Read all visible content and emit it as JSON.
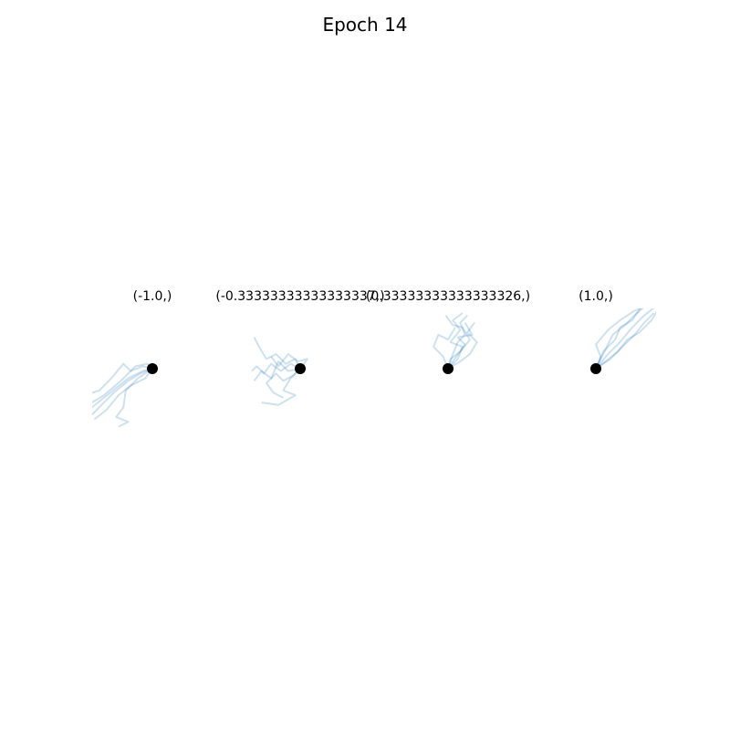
{
  "figure": {
    "title": "Epoch 14"
  },
  "style": {
    "trajectory_color": "#1f77b4",
    "trajectory_alpha": 0.22,
    "marker_color": "#000000"
  },
  "chart_data": [
    {
      "type": "line",
      "title": "(-1.0,)",
      "description_panel": 1,
      "start_point": [
        0,
        0
      ],
      "trajectories": [
        [
          [
            0,
            0
          ],
          [
            -0.25,
            -0.1
          ],
          [
            -0.5,
            -0.25
          ],
          [
            -0.8,
            -0.5
          ],
          [
            -1.05,
            -0.75
          ],
          [
            -1.25,
            -0.95
          ]
        ],
        [
          [
            0,
            0
          ],
          [
            -0.15,
            -0.2
          ],
          [
            -0.45,
            -0.35
          ],
          [
            -0.7,
            -0.55
          ],
          [
            -0.95,
            -0.85
          ],
          [
            -1.2,
            -1.05
          ]
        ],
        [
          [
            0,
            0
          ],
          [
            -0.2,
            0.05
          ],
          [
            -0.45,
            -0.05
          ],
          [
            -0.6,
            0.1
          ],
          [
            -0.85,
            -0.2
          ],
          [
            -1.1,
            -0.45
          ],
          [
            -1.25,
            -0.5
          ]
        ],
        [
          [
            0,
            0
          ],
          [
            -0.3,
            -0.2
          ],
          [
            -0.55,
            -0.45
          ],
          [
            -0.6,
            -0.8
          ],
          [
            -0.75,
            -1.0
          ],
          [
            -0.5,
            -1.1
          ],
          [
            -0.7,
            -1.2
          ]
        ],
        [
          [
            0,
            0
          ],
          [
            -0.1,
            0.1
          ],
          [
            -0.35,
            0.05
          ],
          [
            -0.65,
            -0.25
          ],
          [
            -1.0,
            -0.55
          ],
          [
            -1.25,
            -0.7
          ]
        ],
        [
          [
            0,
            0
          ],
          [
            -0.2,
            -0.05
          ],
          [
            -0.5,
            -0.2
          ],
          [
            -0.75,
            -0.4
          ],
          [
            -1.0,
            -0.6
          ],
          [
            -1.25,
            -0.8
          ]
        ]
      ]
    },
    {
      "type": "line",
      "title": "(-0.33333333333333337,)",
      "description_panel": 2,
      "start_point": [
        0,
        0
      ],
      "trajectories": [
        [
          [
            0,
            0
          ],
          [
            -0.2,
            0.1
          ],
          [
            -0.4,
            -0.05
          ],
          [
            -0.6,
            0.1
          ],
          [
            -0.75,
            -0.1
          ],
          [
            -0.9,
            0.05
          ],
          [
            -1.0,
            -0.05
          ]
        ],
        [
          [
            0,
            0
          ],
          [
            -0.15,
            -0.15
          ],
          [
            -0.35,
            -0.25
          ],
          [
            -0.5,
            -0.1
          ],
          [
            -0.7,
            -0.3
          ],
          [
            -0.55,
            -0.5
          ],
          [
            -0.35,
            -0.6
          ]
        ],
        [
          [
            0,
            0
          ],
          [
            -0.1,
            0.2
          ],
          [
            -0.3,
            0.1
          ],
          [
            -0.5,
            0.3
          ],
          [
            -0.7,
            0.2
          ],
          [
            -0.85,
            0.45
          ],
          [
            -0.95,
            0.65
          ]
        ],
        [
          [
            0,
            0
          ],
          [
            -0.25,
            -0.05
          ],
          [
            -0.45,
            0.15
          ],
          [
            -0.6,
            -0.2
          ],
          [
            -0.8,
            -0.05
          ],
          [
            -0.95,
            -0.25
          ]
        ],
        [
          [
            0,
            0
          ],
          [
            0.15,
            0.2
          ],
          [
            -0.05,
            0.15
          ],
          [
            -0.25,
            0.3
          ],
          [
            -0.45,
            0.05
          ],
          [
            -0.6,
            0.25
          ]
        ],
        [
          [
            0,
            0
          ],
          [
            -0.2,
            -0.2
          ],
          [
            -0.35,
            -0.45
          ],
          [
            -0.1,
            -0.55
          ],
          [
            -0.45,
            -0.75
          ],
          [
            -0.8,
            -0.7
          ]
        ]
      ]
    },
    {
      "type": "line",
      "title": "(0.33333333333333326,)",
      "description_panel": 3,
      "start_point": [
        0,
        0
      ],
      "trajectories": [
        [
          [
            0,
            0
          ],
          [
            0.1,
            0.3
          ],
          [
            0.2,
            0.55
          ],
          [
            0.35,
            0.7
          ],
          [
            0.25,
            0.95
          ],
          [
            0.4,
            1.1
          ]
        ],
        [
          [
            0,
            0
          ],
          [
            0.2,
            0.2
          ],
          [
            0.3,
            0.45
          ],
          [
            0.05,
            0.55
          ],
          [
            0.25,
            0.8
          ],
          [
            0.1,
            1.0
          ],
          [
            0.3,
            1.15
          ]
        ],
        [
          [
            0,
            0
          ],
          [
            -0.1,
            0.25
          ],
          [
            -0.3,
            0.45
          ],
          [
            -0.2,
            0.7
          ],
          [
            0.0,
            0.6
          ],
          [
            0.15,
            0.85
          ]
        ],
        [
          [
            0,
            0
          ],
          [
            0.25,
            0.15
          ],
          [
            0.45,
            0.3
          ],
          [
            0.6,
            0.55
          ],
          [
            0.4,
            0.75
          ],
          [
            0.55,
            0.95
          ]
        ],
        [
          [
            0,
            0
          ],
          [
            0.05,
            0.2
          ],
          [
            0.25,
            0.35
          ],
          [
            0.45,
            0.6
          ],
          [
            0.3,
            0.85
          ],
          [
            0.1,
            0.9
          ],
          [
            -0.05,
            1.1
          ]
        ],
        [
          [
            0,
            0
          ],
          [
            0.1,
            0.15
          ],
          [
            0.35,
            0.5
          ],
          [
            0.2,
            0.65
          ],
          [
            0.5,
            0.7
          ],
          [
            0.35,
            0.95
          ]
        ]
      ]
    },
    {
      "type": "line",
      "title": "(1.0,)",
      "description_panel": 4,
      "start_point": [
        0,
        0
      ],
      "trajectories": [
        [
          [
            0,
            0
          ],
          [
            0.25,
            0.3
          ],
          [
            0.5,
            0.55
          ],
          [
            0.75,
            0.85
          ],
          [
            1.0,
            1.1
          ],
          [
            1.25,
            1.3
          ]
        ],
        [
          [
            0,
            0
          ],
          [
            0.2,
            0.4
          ],
          [
            0.35,
            0.7
          ],
          [
            0.6,
            0.9
          ],
          [
            0.85,
            1.15
          ],
          [
            1.1,
            1.35
          ]
        ],
        [
          [
            0,
            0
          ],
          [
            0.1,
            0.25
          ],
          [
            0.0,
            0.5
          ],
          [
            0.25,
            0.8
          ],
          [
            0.5,
            1.0
          ],
          [
            0.8,
            1.2
          ],
          [
            1.05,
            1.3
          ]
        ],
        [
          [
            0,
            0
          ],
          [
            0.3,
            0.2
          ],
          [
            0.55,
            0.45
          ],
          [
            0.8,
            0.7
          ],
          [
            1.0,
            0.95
          ],
          [
            1.2,
            1.15
          ]
        ],
        [
          [
            0,
            0
          ],
          [
            0.2,
            0.15
          ],
          [
            0.45,
            0.35
          ],
          [
            0.65,
            0.6
          ],
          [
            0.9,
            0.75
          ],
          [
            1.15,
            1.0
          ],
          [
            1.3,
            1.25
          ]
        ],
        [
          [
            0,
            0
          ],
          [
            0.15,
            0.35
          ],
          [
            0.4,
            0.6
          ],
          [
            0.5,
            0.85
          ],
          [
            0.75,
            1.0
          ],
          [
            0.95,
            1.3
          ]
        ]
      ]
    }
  ]
}
